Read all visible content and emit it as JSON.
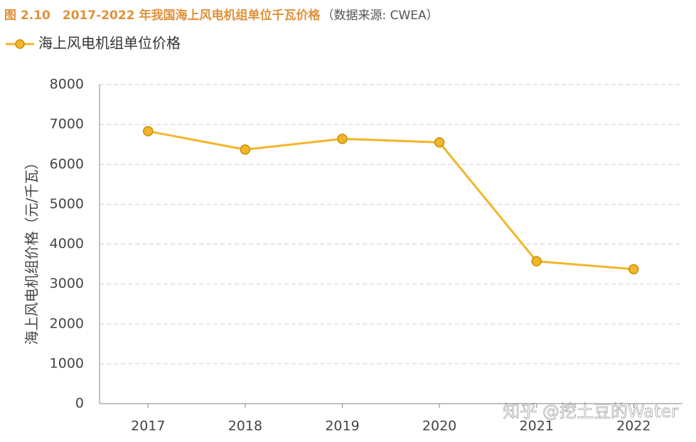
{
  "chart_data": {
    "type": "line",
    "title": "图 2.10　2017-2022 年我国海上风电机组单位千瓦价格",
    "source": "（数据来源: CWEA）",
    "y_label": "海上风电机组价格（元/千瓦）",
    "watermark": "知乎 @挖土豆的Water",
    "categories": [
      "2017",
      "2018",
      "2019",
      "2020",
      "2021",
      "2022"
    ],
    "series": [
      {
        "name": "海上风电机组单位价格",
        "color": "#f2b62a",
        "values": [
          6830,
          6370,
          6640,
          6550,
          3570,
          3370
        ]
      }
    ],
    "ylim": [
      0,
      8000
    ],
    "yticks": [
      0,
      1000,
      2000,
      3000,
      4000,
      5000,
      6000,
      7000,
      8000
    ],
    "grid": true
  }
}
